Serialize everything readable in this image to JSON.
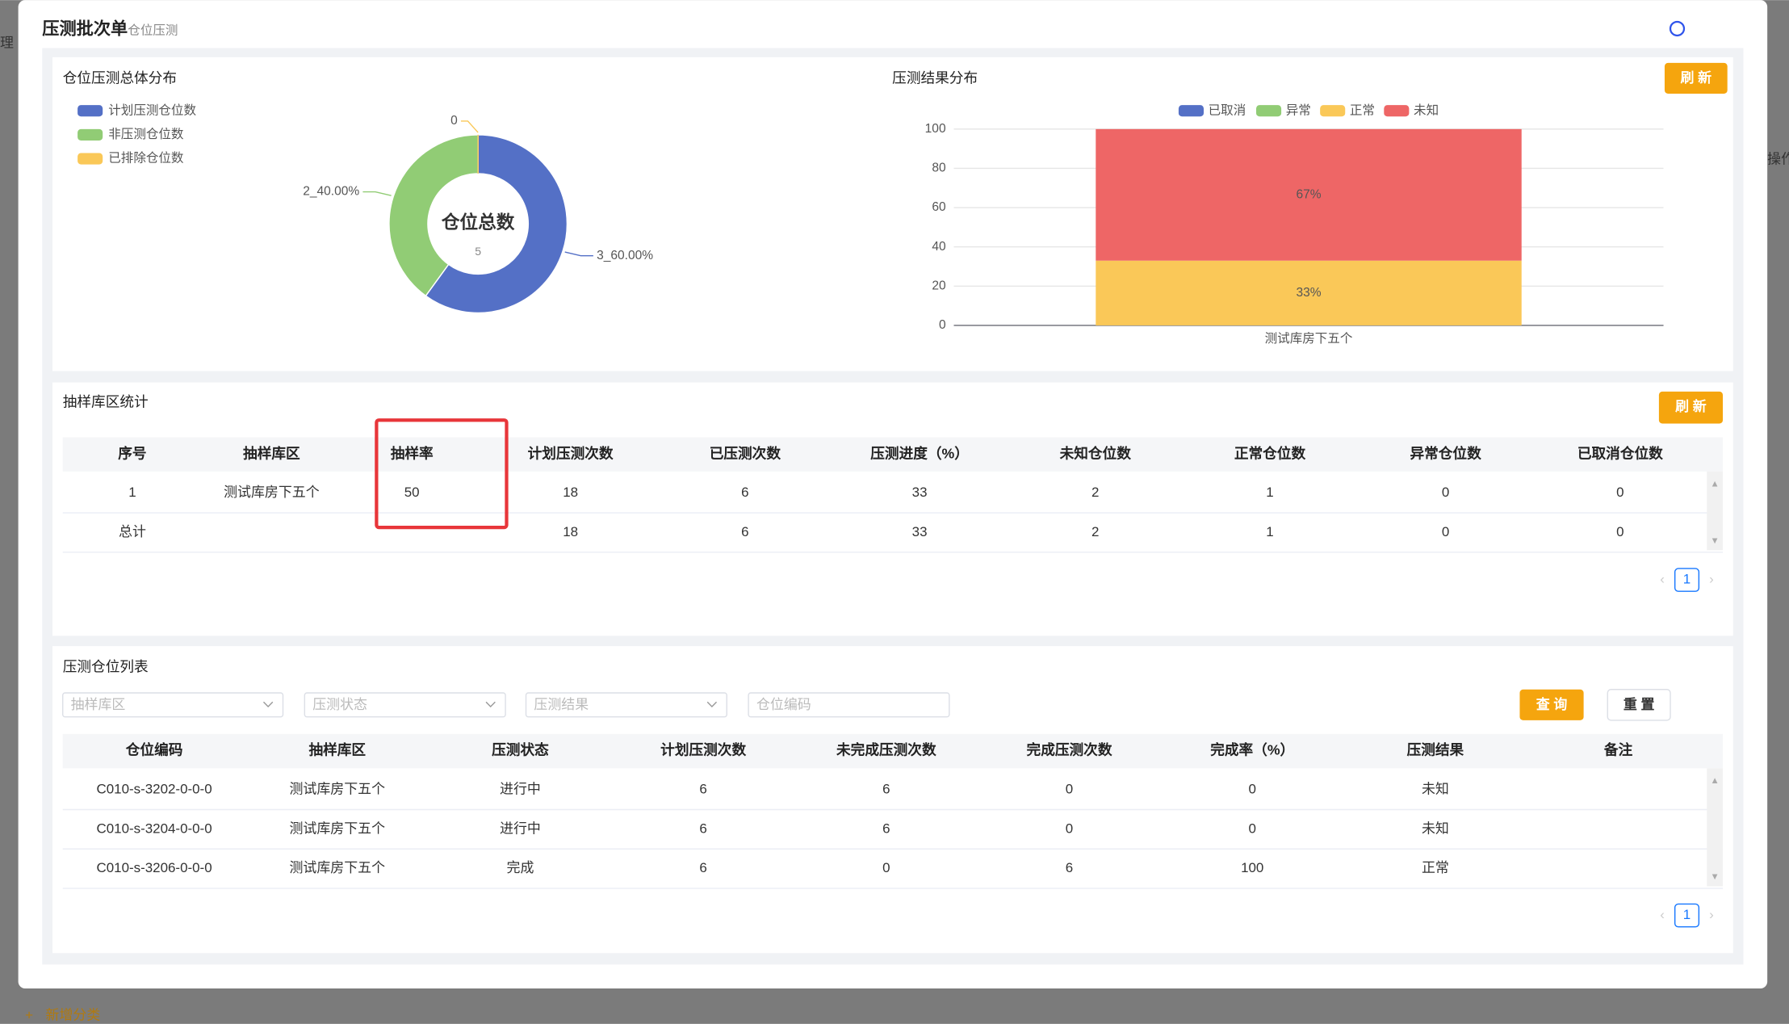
{
  "background": {
    "side_text": "理",
    "action_text": "操作",
    "add_category": "新增分类"
  },
  "header": {
    "title": "压测批次单",
    "subtitle": "仓位压测"
  },
  "chart_panel": {
    "refresh_button": "刷 新"
  },
  "chart_data": [
    {
      "type": "pie",
      "title": "仓位压测总体分布",
      "categories": [
        "计划压测仓位数",
        "非压测仓位数",
        "已排除仓位数"
      ],
      "values": [
        3,
        2,
        0
      ],
      "value_labels": [
        "3_60.00%",
        "2_40.00%",
        "0"
      ],
      "colors": [
        "#5470c6",
        "#91cc75",
        "#fac858"
      ],
      "center_label": "仓位总数",
      "center_value": 5
    },
    {
      "type": "bar",
      "stacked": true,
      "title": "压测结果分布",
      "categories": [
        "测试库房下五个"
      ],
      "series": [
        {
          "name": "已取消",
          "color": "#5470c6",
          "values": [
            0
          ]
        },
        {
          "name": "异常",
          "color": "#91cc75",
          "values": [
            0
          ]
        },
        {
          "name": "正常",
          "color": "#fac858",
          "values": [
            33
          ],
          "value_labels": [
            "33%"
          ]
        },
        {
          "name": "未知",
          "color": "#ee6666",
          "values": [
            67
          ],
          "value_labels": [
            "67%"
          ]
        }
      ],
      "ylim": [
        0,
        100
      ],
      "yticks": [
        0,
        20,
        40,
        60,
        80,
        100
      ],
      "grid": true
    }
  ],
  "sample_table": {
    "title": "抽样库区统计",
    "refresh_button": "刷 新",
    "columns": [
      "序号",
      "抽样库区",
      "抽样率",
      "计划压测次数",
      "已压测次数",
      "压测进度（%）",
      "未知仓位数",
      "正常仓位数",
      "异常仓位数",
      "已取消仓位数"
    ],
    "rows": [
      [
        1,
        "测试库房下五个",
        50,
        18,
        6,
        33,
        2,
        1,
        0,
        0
      ],
      [
        "总计",
        null,
        null,
        18,
        6,
        33,
        2,
        1,
        0,
        0
      ]
    ],
    "page": 1
  },
  "location_table": {
    "title": "压测仓位列表",
    "filters": [
      "抽样库区",
      "压测状态",
      "压测结果",
      "仓位编码"
    ],
    "query_button": "查 询",
    "reset_button": "重 置",
    "columns": [
      "仓位编码",
      "抽样库区",
      "压测状态",
      "计划压测次数",
      "未完成压测次数",
      "完成压测次数",
      "完成率（%）",
      "压测结果",
      "备注"
    ],
    "rows": [
      [
        "C010-s-3202-0-0-0",
        "测试库房下五个",
        "进行中",
        6,
        6,
        0,
        0,
        "未知",
        null
      ],
      [
        "C010-s-3204-0-0-0",
        "测试库房下五个",
        "进行中",
        6,
        6,
        0,
        0,
        "未知",
        null
      ],
      [
        "C010-s-3206-0-0-0",
        "测试库房下五个",
        "完成",
        6,
        0,
        6,
        100,
        "正常",
        null
      ]
    ],
    "page": 1
  }
}
